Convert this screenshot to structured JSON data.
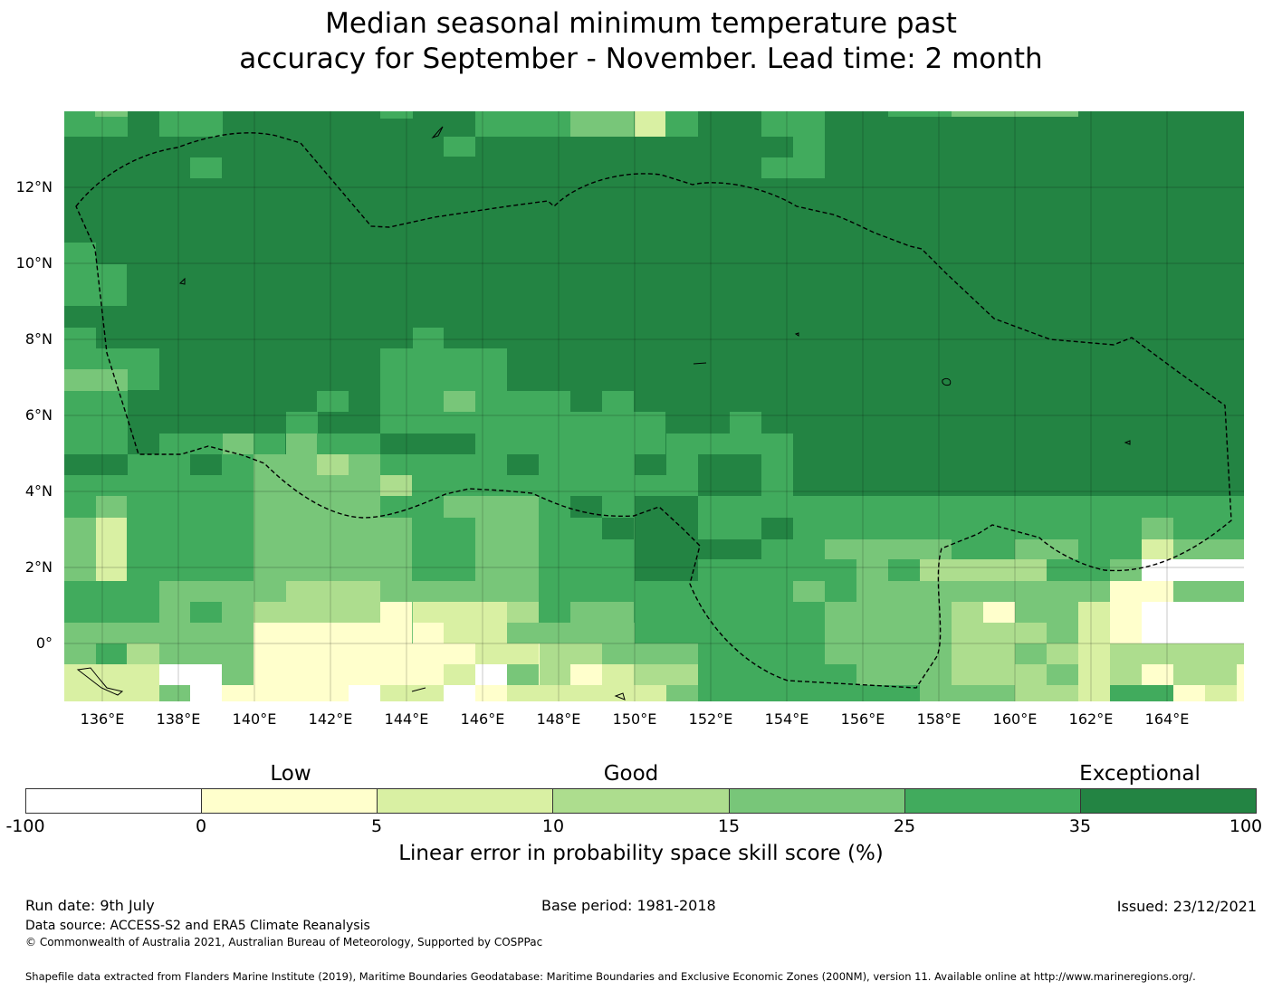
{
  "title_line1": "Median seasonal minimum temperature past",
  "title_line2": "accuracy for September - November. Lead time: 2 month",
  "map": {
    "lat_labels": [
      "12°N",
      "10°N",
      "8°N",
      "6°N",
      "4°N",
      "2°N",
      "0°"
    ],
    "lon_labels": [
      "136°E",
      "138°E",
      "140°E",
      "142°E",
      "144°E",
      "146°E",
      "148°E",
      "150°E",
      "152°E",
      "154°E",
      "156°E",
      "158°E",
      "160°E",
      "162°E",
      "164°E"
    ],
    "ocean_color": "#ffffff",
    "eez_line": "dashed black"
  },
  "legend": {
    "categories": [
      "Low",
      "Good",
      "Exceptional"
    ],
    "ticks": [
      "-100",
      "0",
      "5",
      "10",
      "15",
      "25",
      "35",
      "100"
    ],
    "colors": [
      "#ffffff",
      "#ffffcc",
      "#d9f0a3",
      "#addd8e",
      "#78c679",
      "#41ab5d",
      "#238443"
    ],
    "label": "Linear error in probability space skill score (%)"
  },
  "footer": {
    "run_date": "Run date: 9th July",
    "base_period": "Base period: 1981-2018",
    "issued": "Issued: 23/12/2021",
    "data_source": "Data source: ACCESS-S2 and ERA5 Climate Reanalysis",
    "copyright": "© Commonwealth of Australia 2021, Australian Bureau of Meteorology, Supported by COSPPac",
    "shapefile": "Shapefile data extracted from Flanders Marine Institute (2019), Maritime Boundaries Geodatabase: Maritime Boundaries and Exclusive Economic Zones (200NM), version 11. Available online at http://www.marineregions.org/."
  }
}
